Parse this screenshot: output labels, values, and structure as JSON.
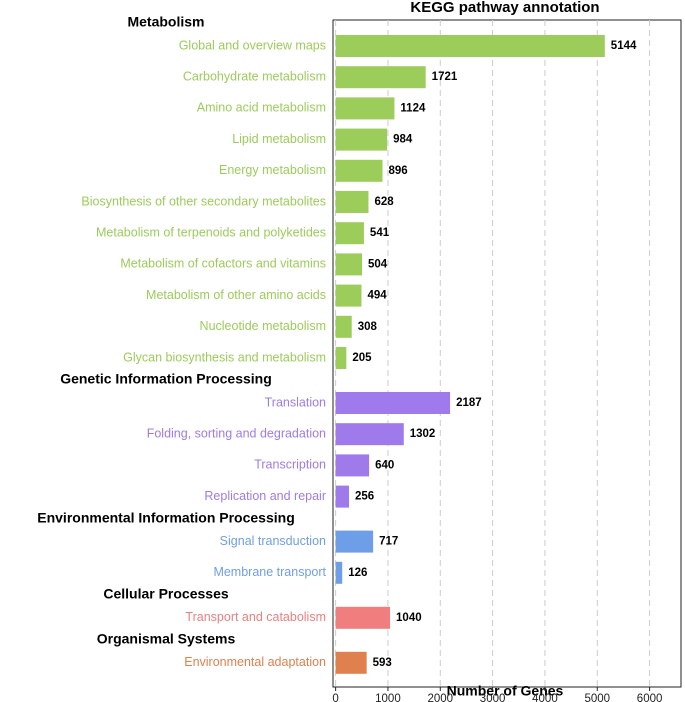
{
  "chart_data": {
    "type": "grouped-barh",
    "title": "KEGG pathway annotation",
    "xlabel": "Number of Genes",
    "xlim": [
      -50,
      6600
    ],
    "xticks": [
      0,
      1000,
      2000,
      3000,
      4000,
      5000,
      6000
    ],
    "grid": true,
    "groups": [
      {
        "name": "Metabolism",
        "color": "#9ccc5a",
        "categories": [
          "Global and overview maps",
          "Carbohydrate metabolism",
          "Amino acid metabolism",
          "Lipid metabolism",
          "Energy metabolism",
          "Biosynthesis of other secondary metabolites",
          "Metabolism of terpenoids and polyketides",
          "Metabolism of cofactors and vitamins",
          "Metabolism of other amino acids",
          "Nucleotide metabolism",
          "Glycan biosynthesis and metabolism"
        ],
        "values": [
          5144,
          1721,
          1124,
          984,
          896,
          628,
          541,
          504,
          494,
          308,
          205
        ]
      },
      {
        "name": "Genetic Information Processing",
        "color": "#9f7aea",
        "categories": [
          "Translation",
          "Folding, sorting and degradation",
          "Transcription",
          "Replication and repair"
        ],
        "values": [
          2187,
          1302,
          640,
          256
        ]
      },
      {
        "name": "Environmental Information Processing",
        "color": "#6f9ee8",
        "categories": [
          "Signal transduction",
          "Membrane transport"
        ],
        "values": [
          717,
          126
        ]
      },
      {
        "name": "Cellular Processes",
        "color": "#f07e7e",
        "categories": [
          "Transport and catabolism"
        ],
        "values": [
          1040
        ]
      },
      {
        "name": "Organismal Systems",
        "color": "#e0804f",
        "categories": [
          "Environmental adaptation"
        ],
        "values": [
          593
        ]
      }
    ]
  }
}
